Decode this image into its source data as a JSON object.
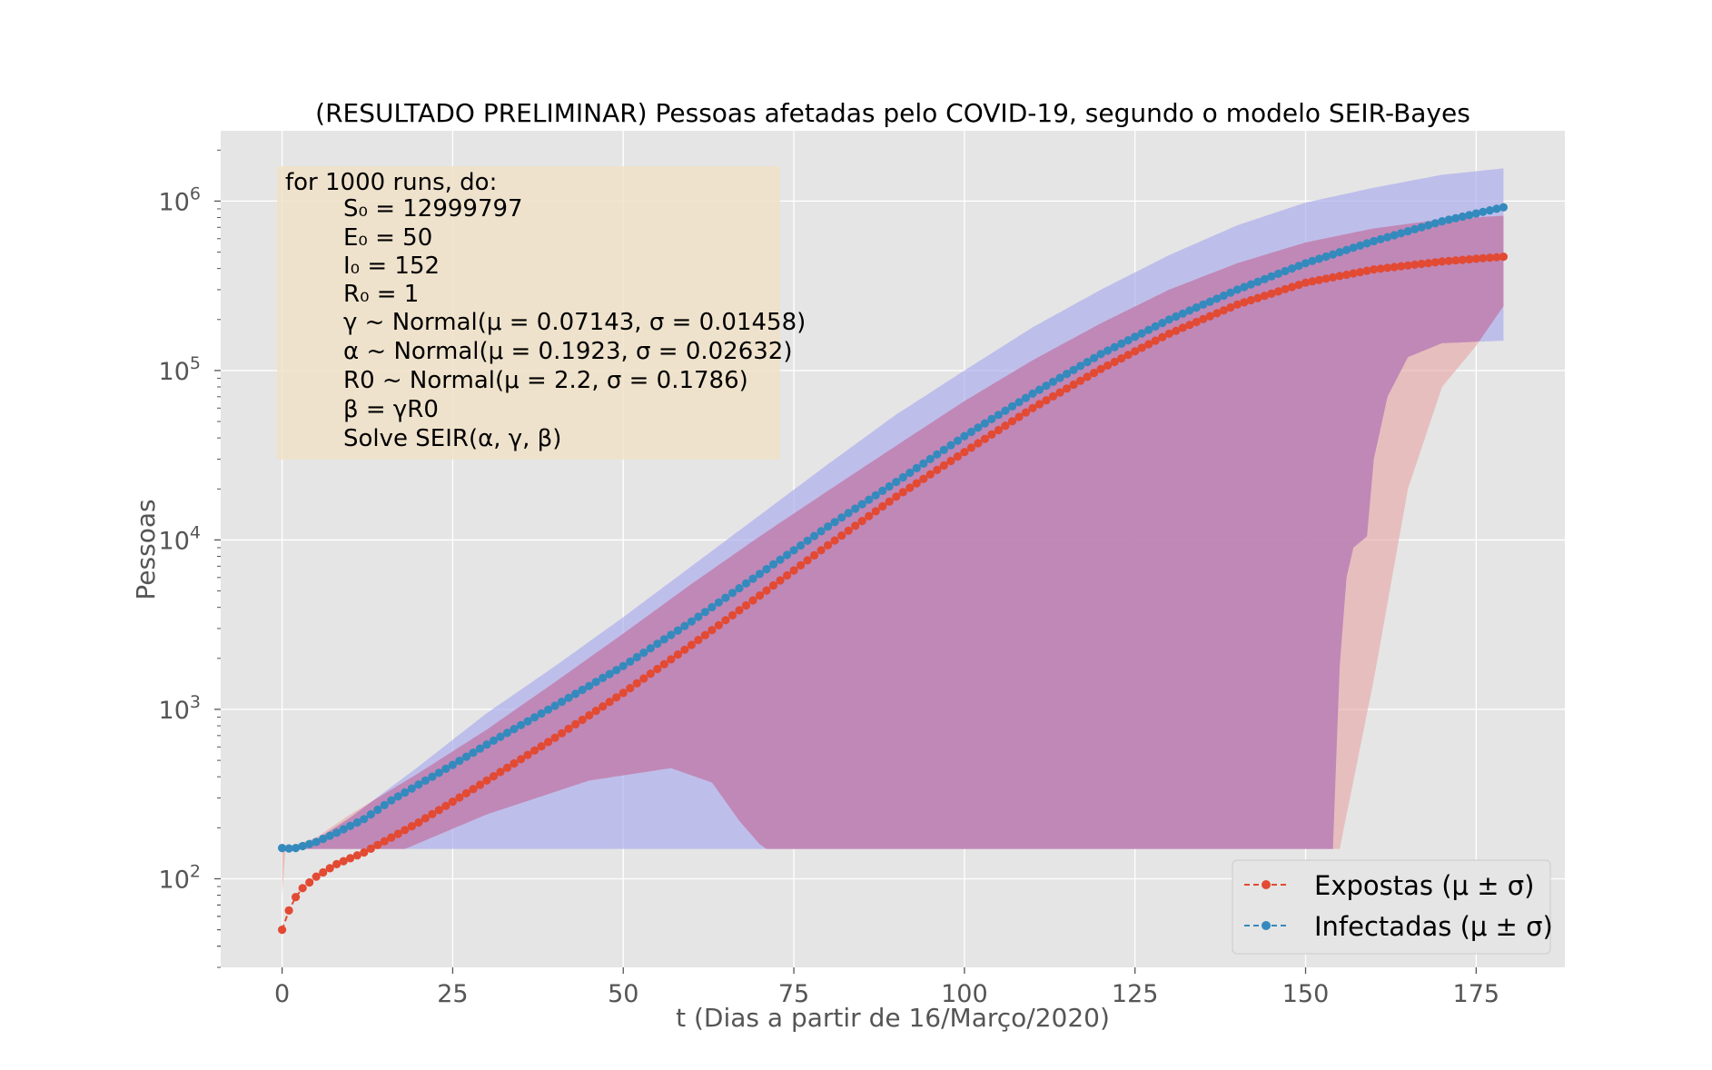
{
  "colors": {
    "background": "#ffffff",
    "plot_bg": "#e5e5e5",
    "grid": "#ffffff",
    "expostas": "#e24a33",
    "infectadas": "#348abd",
    "band_expostas": "#e8a7a7",
    "band_infectadas": "#a8a8ee",
    "textbox_bg": "#f1e2c8"
  },
  "chart_data": {
    "type": "line",
    "title": "(RESULTADO PRELIMINAR) Pessoas afetadas pelo COVID-19, segundo o modelo SEIR-Bayes",
    "xlabel": "t (Dias a partir de 16/Março/2020)",
    "ylabel": "Pessoas",
    "xlim": [
      -9,
      188
    ],
    "ylim": [
      30,
      2600000
    ],
    "yscale": "log",
    "grid": true,
    "legend_position": "lower-right",
    "xticks": [
      "0",
      "25",
      "50",
      "75",
      "100",
      "125",
      "150",
      "175"
    ],
    "xtick_values": [
      0,
      25,
      50,
      75,
      100,
      125,
      150,
      175
    ],
    "yticks": [
      {
        "base": "10",
        "exp": "2",
        "value": 100
      },
      {
        "base": "10",
        "exp": "3",
        "value": 1000
      },
      {
        "base": "10",
        "exp": "4",
        "value": 10000
      },
      {
        "base": "10",
        "exp": "5",
        "value": 100000
      },
      {
        "base": "10",
        "exp": "6",
        "value": 1000000
      }
    ],
    "textbox": {
      "header": "for 1000 runs, do:",
      "lines": [
        "S₀ = 12999797",
        "E₀ = 50",
        "I₀ = 152",
        "R₀ = 1",
        "γ ~ Normal(μ = 0.07143, σ = 0.01458)",
        "α ~ Normal(μ = 0.1923, σ = 0.02632)",
        "R0 ~ Normal(μ = 2.2, σ = 0.1786)",
        "β = γR0",
        "Solve SEIR(α, γ, β)"
      ]
    },
    "series": [
      {
        "name": "Expostas (μ ± σ)",
        "t": [
          0,
          1,
          2,
          3,
          5,
          8,
          12,
          16,
          20,
          25,
          30,
          40,
          50,
          60,
          70,
          80,
          90,
          100,
          110,
          120,
          130,
          140,
          150,
          160,
          170,
          179
        ],
        "values": [
          50,
          65,
          78,
          88,
          103,
          122,
          143,
          175,
          215,
          285,
          380,
          680,
          1250,
          2400,
          4700,
          9300,
          18000,
          33000,
          60000,
          102000,
          165000,
          245000,
          330000,
          395000,
          440000,
          470000
        ],
        "band_upper_t": [
          0,
          5,
          10,
          20,
          30,
          40,
          50,
          60,
          70,
          80,
          90,
          100,
          110,
          120,
          130,
          140,
          150,
          160,
          170,
          179
        ],
        "band_upper": [
          150,
          175,
          240,
          420,
          760,
          1450,
          2800,
          5500,
          10500,
          19500,
          36000,
          66000,
          115000,
          190000,
          300000,
          430000,
          570000,
          690000,
          780000,
          820000
        ],
        "band_lower_t": [
          0,
          0.5,
          8,
          18,
          30,
          45,
          57,
          63,
          67,
          70,
          71,
          155,
          160,
          165,
          170,
          175,
          179
        ],
        "band_lower": [
          80,
          150,
          150,
          150,
          240,
          380,
          450,
          370,
          220,
          160,
          150,
          150,
          1500,
          20000,
          80000,
          140000,
          240000
        ]
      },
      {
        "name": "Infectadas (μ ± σ)",
        "t": [
          0,
          1,
          2,
          3,
          5,
          8,
          12,
          16,
          20,
          25,
          30,
          40,
          50,
          60,
          70,
          80,
          90,
          100,
          110,
          120,
          130,
          140,
          150,
          160,
          170,
          179
        ],
        "values": [
          152,
          151,
          152,
          156,
          165,
          187,
          225,
          290,
          360,
          470,
          620,
          1050,
          1800,
          3300,
          6300,
          12000,
          22000,
          41000,
          73000,
          125000,
          200000,
          300000,
          430000,
          580000,
          760000,
          920000
        ],
        "band_upper_t": [
          0,
          5,
          10,
          20,
          30,
          40,
          50,
          60,
          70,
          80,
          90,
          100,
          110,
          120,
          130,
          140,
          150,
          160,
          170,
          179
        ],
        "band_upper": [
          150,
          170,
          230,
          460,
          950,
          1800,
          3500,
          7000,
          14000,
          28000,
          55000,
          100000,
          180000,
          300000,
          480000,
          720000,
          980000,
          1200000,
          1430000,
          1560000
        ],
        "band_lower_t": [
          0,
          5,
          10,
          20,
          30,
          40,
          50,
          60,
          70,
          80,
          84,
          154,
          155,
          156,
          157,
          159,
          160,
          162,
          165,
          170,
          179
        ],
        "band_lower": [
          150,
          150,
          150,
          150,
          150,
          150,
          150,
          150,
          150,
          150,
          150,
          150,
          1800,
          6000,
          9000,
          10500,
          30000,
          70000,
          120000,
          145000,
          150000
        ]
      }
    ]
  }
}
